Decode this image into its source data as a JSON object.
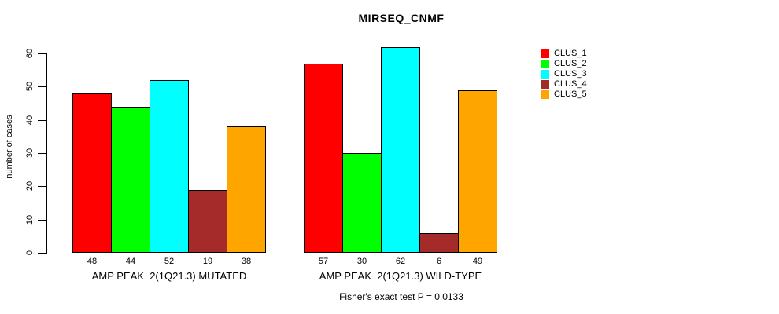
{
  "title": "MIRSEQ_CNMF",
  "y_axis": {
    "label": "number of cases",
    "ticks": [
      "0",
      "10",
      "20",
      "30",
      "40",
      "50",
      "60"
    ]
  },
  "groups": [
    {
      "label": "AMP PEAK  2(1Q21.3) MUTATED"
    },
    {
      "label": "AMP PEAK  2(1Q21.3) WILD-TYPE"
    }
  ],
  "footer": "Fisher's exact test P = 0.0133",
  "legend": {
    "labels": [
      "CLUS_1",
      "CLUS_2",
      "CLUS_3",
      "CLUS_4",
      "CLUS_5"
    ]
  },
  "chart_data": {
    "type": "bar",
    "title": "MIRSEQ_CNMF",
    "categories": [
      "AMP PEAK  2(1Q21.3) MUTATED",
      "AMP PEAK  2(1Q21.3) WILD-TYPE"
    ],
    "series": [
      {
        "name": "CLUS_1",
        "color": "#FF0000",
        "values": [
          48,
          57
        ]
      },
      {
        "name": "CLUS_2",
        "color": "#00FF00",
        "values": [
          44,
          30
        ]
      },
      {
        "name": "CLUS_3",
        "color": "#00FFFF",
        "values": [
          52,
          62
        ]
      },
      {
        "name": "CLUS_4",
        "color": "#A52A2A",
        "values": [
          19,
          6
        ]
      },
      {
        "name": "CLUS_5",
        "color": "#FFA500",
        "values": [
          38,
          49
        ]
      }
    ],
    "ylabel": "number of cases",
    "ylim": [
      0,
      60
    ],
    "yticks": [
      0,
      10,
      20,
      30,
      40,
      50,
      60
    ],
    "bar_value_labels": true,
    "grid": false,
    "legend_position": "right",
    "annotation": "Fisher's exact test P = 0.0133"
  }
}
